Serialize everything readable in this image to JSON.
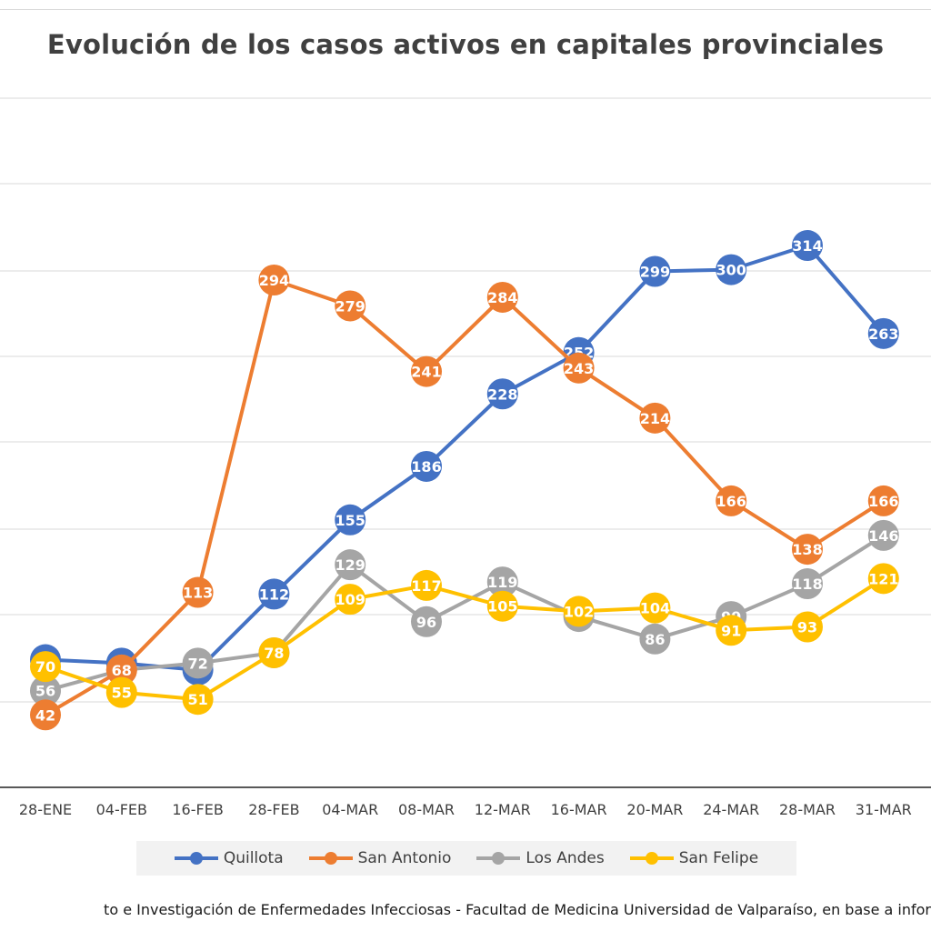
{
  "chart_data": {
    "type": "line",
    "title": "Evolución de los casos activos en capitales provinciales",
    "categories": [
      "28-ENE",
      "04-FEB",
      "16-FEB",
      "28-FEB",
      "04-MAR",
      "08-MAR",
      "12-MAR",
      "16-MAR",
      "20-MAR",
      "24-MAR",
      "28-MAR",
      "31-MAR"
    ],
    "series": [
      {
        "name": "Quillota",
        "color": "#4472C4",
        "values": [
          74,
          72,
          68,
          112,
          155,
          186,
          228,
          252,
          299,
          300,
          314,
          263
        ]
      },
      {
        "name": "San Antonio",
        "color": "#ED7D31",
        "values": [
          42,
          68,
          113,
          294,
          279,
          241,
          284,
          243,
          214,
          166,
          138,
          166
        ]
      },
      {
        "name": "Los Andes",
        "color": "#A5A5A5",
        "values": [
          56,
          68,
          72,
          78,
          129,
          96,
          119,
          99,
          86,
          99,
          118,
          146
        ]
      },
      {
        "name": "San Felipe",
        "color": "#FFC000",
        "values": [
          70,
          55,
          51,
          78,
          109,
          117,
          105,
          102,
          104,
          91,
          93,
          121
        ]
      }
    ],
    "legend_position": "bottom",
    "grid": true
  },
  "source_text": "to e Investigación de Enfermedades Infecciosas - Facultad de Medicina Universidad de Valparaíso, en base a infor"
}
